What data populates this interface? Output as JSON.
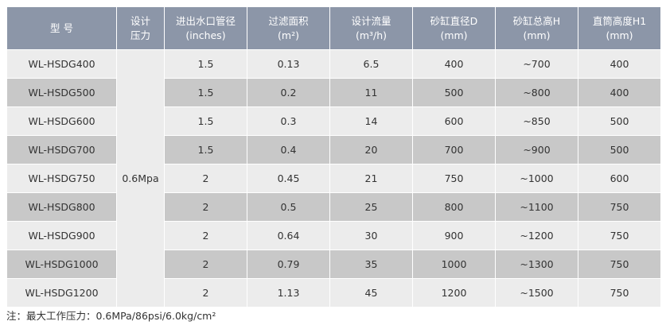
{
  "table": {
    "headers": [
      [
        "型 号"
      ],
      [
        "设计",
        "压力"
      ],
      [
        "进出水口管径",
        "(inches)"
      ],
      [
        "过滤面积",
        "(m²)"
      ],
      [
        "设计流量",
        "(m³/h)"
      ],
      [
        "砂缸直径D",
        "(mm)"
      ],
      [
        "砂缸总高H",
        "(mm)"
      ],
      [
        "直筒高度H1",
        "(mm)"
      ]
    ],
    "pressure": "0.6Mpa",
    "rows": [
      [
        "WL-HSDG400",
        "1.5",
        "0.13",
        "6.5",
        "400",
        "~700",
        "400"
      ],
      [
        "WL-HSDG500",
        "1.5",
        "0.2",
        "11",
        "500",
        "~800",
        "400"
      ],
      [
        "WL-HSDG600",
        "1.5",
        "0.3",
        "14",
        "600",
        "~850",
        "500"
      ],
      [
        "WL-HSDG700",
        "1.5",
        "0.4",
        "20",
        "700",
        "~900",
        "500"
      ],
      [
        "WL-HSDG750",
        "2",
        "0.45",
        "21",
        "750",
        "~1000",
        "600"
      ],
      [
        "WL-HSDG800",
        "2",
        "0.5",
        "25",
        "800",
        "~1100",
        "750"
      ],
      [
        "WL-HSDG900",
        "2",
        "0.64",
        "30",
        "900",
        "~1200",
        "750"
      ],
      [
        "WL-HSDG1000",
        "2",
        "0.79",
        "35",
        "1000",
        "~1300",
        "750"
      ],
      [
        "WL-HSDG1200",
        "2",
        "1.13",
        "45",
        "1200",
        "~1500",
        "750"
      ]
    ]
  },
  "note": "注：最大工作压力：0.6MPa/86psi/6.0kg/cm²",
  "colors": {
    "header_bg": "#8c96a8",
    "row_light": "#ececec",
    "row_dark": "#c8c8c8"
  }
}
